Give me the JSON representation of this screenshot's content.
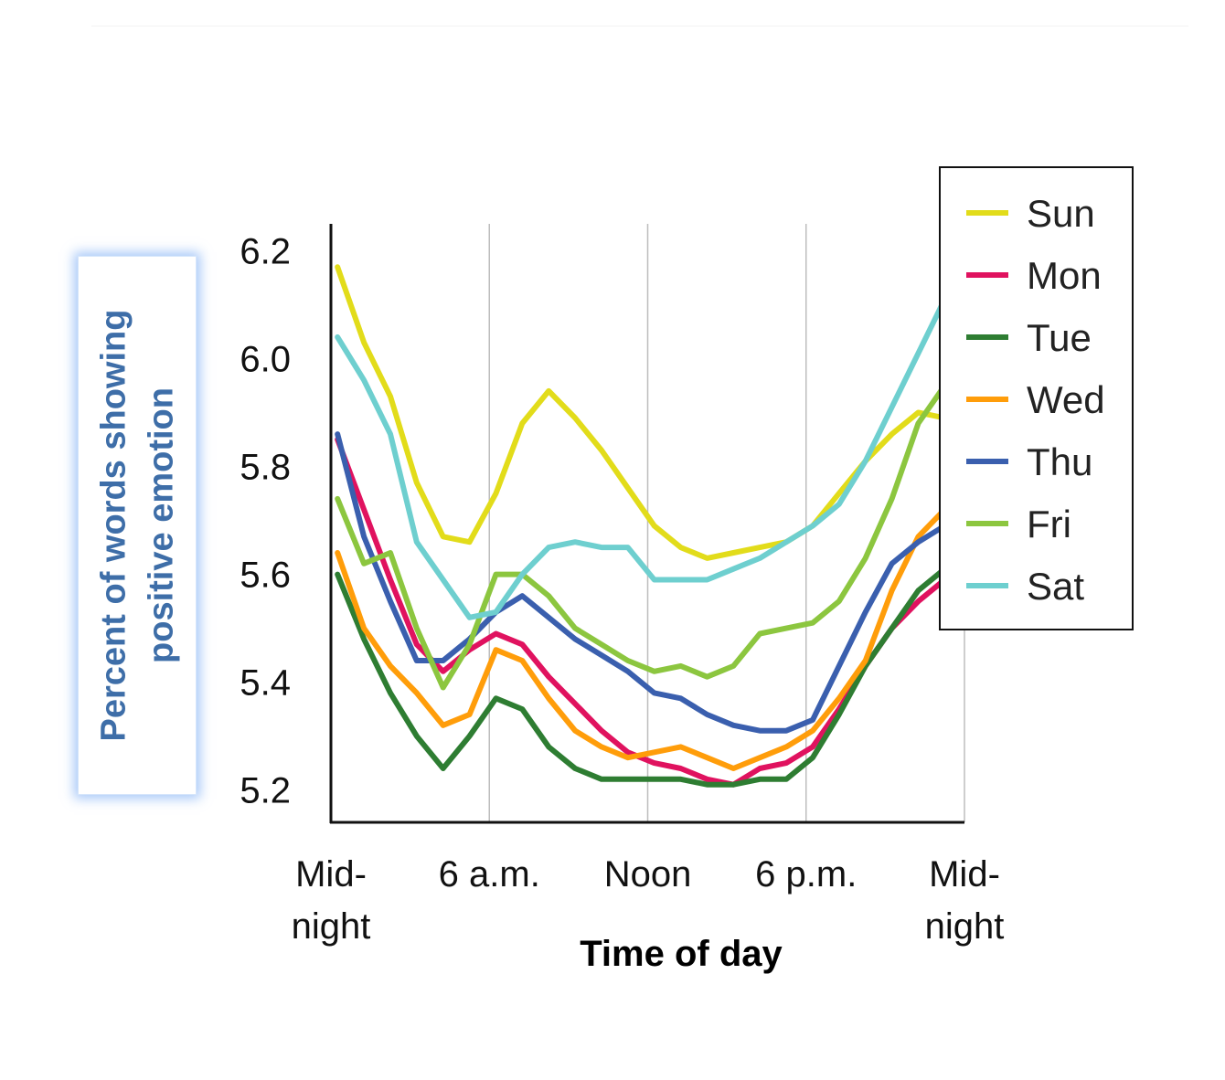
{
  "chart_data": {
    "type": "line",
    "xlabel": "Time of day",
    "ylabel_line1": "Percent of words showing",
    "ylabel_line2": "positive emotion",
    "x_tick_labels": [
      [
        "Mid-",
        "night"
      ],
      [
        "6 a.m."
      ],
      [
        "Noon"
      ],
      [
        "6 p.m."
      ],
      [
        "Mid-",
        "night"
      ]
    ],
    "x_tick_hours": [
      0,
      6,
      12,
      18,
      24
    ],
    "xlim": [
      0,
      24
    ],
    "ylim": [
      5.14,
      6.25
    ],
    "y_ticks": [
      5.2,
      5.4,
      5.6,
      5.8,
      6.0,
      6.2
    ],
    "y_tick_labels": [
      "5.2",
      "5.4",
      "5.6",
      "5.8",
      "6.0",
      "6.2"
    ],
    "grid": "vertical lines at 6 a.m., Noon, 6 p.m.",
    "legend_position": "top-right",
    "x_hours": [
      0.25,
      1.25,
      2.25,
      3.25,
      4.25,
      5.25,
      6.25,
      7.25,
      8.25,
      9.25,
      10.25,
      11.25,
      12.25,
      13.25,
      14.25,
      15.25,
      16.25,
      17.25,
      18.25,
      19.25,
      20.25,
      21.25,
      22.25,
      23.25
    ],
    "series": [
      {
        "name": "Sun",
        "color": "#e2dc1a",
        "values": [
          6.17,
          6.03,
          5.93,
          5.77,
          5.67,
          5.66,
          5.75,
          5.88,
          5.94,
          5.89,
          5.83,
          5.76,
          5.69,
          5.65,
          5.63,
          5.64,
          5.65,
          5.66,
          5.69,
          5.75,
          5.81,
          5.86,
          5.9,
          5.89
        ]
      },
      {
        "name": "Mon",
        "color": "#e0125f",
        "values": [
          5.85,
          5.72,
          5.59,
          5.47,
          5.42,
          5.46,
          5.49,
          5.47,
          5.41,
          5.36,
          5.31,
          5.27,
          5.25,
          5.24,
          5.22,
          5.21,
          5.24,
          5.25,
          5.28,
          5.35,
          5.43,
          5.5,
          5.55,
          5.59
        ]
      },
      {
        "name": "Tue",
        "color": "#2e7d32",
        "values": [
          5.6,
          5.48,
          5.38,
          5.3,
          5.24,
          5.3,
          5.37,
          5.35,
          5.28,
          5.24,
          5.22,
          5.22,
          5.22,
          5.22,
          5.21,
          5.21,
          5.22,
          5.22,
          5.26,
          5.34,
          5.43,
          5.5,
          5.57,
          5.61
        ]
      },
      {
        "name": "Wed",
        "color": "#ff9d0a",
        "values": [
          5.64,
          5.5,
          5.43,
          5.38,
          5.32,
          5.34,
          5.46,
          5.44,
          5.37,
          5.31,
          5.28,
          5.26,
          5.27,
          5.28,
          5.26,
          5.24,
          5.26,
          5.28,
          5.31,
          5.37,
          5.44,
          5.57,
          5.67,
          5.72
        ]
      },
      {
        "name": "Thu",
        "color": "#3a5fae",
        "values": [
          5.86,
          5.67,
          5.55,
          5.44,
          5.44,
          5.48,
          5.53,
          5.56,
          5.52,
          5.48,
          5.45,
          5.42,
          5.38,
          5.37,
          5.34,
          5.32,
          5.31,
          5.31,
          5.33,
          5.43,
          5.53,
          5.62,
          5.66,
          5.69
        ]
      },
      {
        "name": "Fri",
        "color": "#8cc63f",
        "values": [
          5.74,
          5.62,
          5.64,
          5.5,
          5.39,
          5.47,
          5.6,
          5.6,
          5.56,
          5.5,
          5.47,
          5.44,
          5.42,
          5.43,
          5.41,
          5.43,
          5.49,
          5.5,
          5.51,
          5.55,
          5.63,
          5.74,
          5.88,
          5.95
        ]
      },
      {
        "name": "Sat",
        "color": "#6ecfcf",
        "values": [
          6.04,
          5.96,
          5.86,
          5.66,
          5.59,
          5.52,
          5.53,
          5.6,
          5.65,
          5.66,
          5.65,
          5.65,
          5.59,
          5.59,
          5.59,
          5.61,
          5.63,
          5.66,
          5.69,
          5.73,
          5.81,
          5.91,
          6.01,
          6.11
        ]
      }
    ]
  }
}
